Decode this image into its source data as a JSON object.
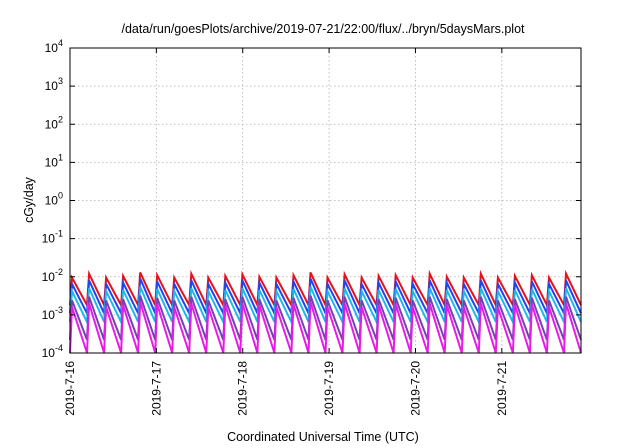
{
  "chart_data": {
    "type": "line",
    "title": "/data/run/goesPlots/archive/2019-07-21/22:00/flux/../bryn/5daysMars.plot",
    "xlabel": "Coordinated Universal Time (UTC)",
    "ylabel": "cGy/day",
    "yscale": "log",
    "ylim": [
      0.0001,
      10000
    ],
    "y_ticks": [
      {
        "base": "10",
        "exp": "-4",
        "value": 0.0001
      },
      {
        "base": "10",
        "exp": "-3",
        "value": 0.001
      },
      {
        "base": "10",
        "exp": "-2",
        "value": 0.01
      },
      {
        "base": "10",
        "exp": "-1",
        "value": 0.1
      },
      {
        "base": "10",
        "exp": "0",
        "value": 1
      },
      {
        "base": "10",
        "exp": "1",
        "value": 10
      },
      {
        "base": "10",
        "exp": "2",
        "value": 100
      },
      {
        "base": "10",
        "exp": "3",
        "value": 1000
      },
      {
        "base": "10",
        "exp": "4",
        "value": 10000
      }
    ],
    "xlim": [
      "2019-07-16 00:00",
      "2019-07-21 22:00"
    ],
    "x_ticks": [
      "2019-7-16",
      "2019-7-17",
      "2019-7-18",
      "2019-7-19",
      "2019-7-20",
      "2019-7-21"
    ],
    "grid": true,
    "legend": "none",
    "series": [
      {
        "color": "#e8101a",
        "sawtooth": {
          "peak": [
            0.0095,
            0.012,
            0.0095,
            0.0105,
            0.013,
            0.011,
            0.0095,
            0.012,
            0.0095,
            0.0105,
            0.0115,
            0.01,
            0.0095,
            0.011,
            0.013,
            0.0095,
            0.0115,
            0.0095,
            0.0105,
            0.011,
            0.0095,
            0.012,
            0.01,
            0.0095,
            0.012,
            0.0095,
            0.0105,
            0.011,
            0.0095,
            0.012
          ],
          "trough": 0.0018
        }
      },
      {
        "color": "#2244ee",
        "sawtooth": {
          "peak": [
            0.0065,
            0.008,
            0.0065,
            0.007,
            0.009,
            0.0075,
            0.0065,
            0.008,
            0.0065,
            0.007,
            0.008,
            0.007,
            0.0065,
            0.0075,
            0.009,
            0.0065,
            0.008,
            0.0065,
            0.007,
            0.0075,
            0.0065,
            0.008,
            0.007,
            0.0065,
            0.008,
            0.0065,
            0.007,
            0.0075,
            0.0065,
            0.008
          ],
          "trough": 0.0011
        }
      },
      {
        "color": "#1fb7ea",
        "sawtooth": {
          "peak": [
            0.0042,
            0.005,
            0.0042,
            0.0045,
            0.0055,
            0.0048,
            0.0042,
            0.005,
            0.0042,
            0.0045,
            0.005,
            0.0045,
            0.0042,
            0.0048,
            0.0055,
            0.0042,
            0.005,
            0.0042,
            0.0045,
            0.0048,
            0.0042,
            0.005,
            0.0045,
            0.0042,
            0.005,
            0.0042,
            0.0045,
            0.0048,
            0.0042,
            0.005
          ],
          "trough": 0.00065
        }
      },
      {
        "color": "#7a3fb5",
        "sawtooth": {
          "peak": [
            0.0024,
            0.003,
            0.0024,
            0.0026,
            0.0032,
            0.0028,
            0.0024,
            0.003,
            0.0024,
            0.0026,
            0.003,
            0.0026,
            0.0024,
            0.0028,
            0.0032,
            0.0024,
            0.003,
            0.0024,
            0.0026,
            0.0028,
            0.0024,
            0.003,
            0.0026,
            0.0024,
            0.003,
            0.0024,
            0.0026,
            0.0028,
            0.0024,
            0.003
          ],
          "trough": 0.00022
        }
      },
      {
        "color": "#e61ce6",
        "sawtooth": {
          "peak": [
            0.0016,
            0.002,
            0.0016,
            0.0018,
            0.0022,
            0.0019,
            0.0016,
            0.002,
            0.0016,
            0.0018,
            0.002,
            0.0018,
            0.0016,
            0.0019,
            0.0022,
            0.0016,
            0.002,
            0.0016,
            0.0018,
            0.0019,
            0.0016,
            0.002,
            0.0018,
            0.0016,
            0.002,
            0.0016,
            0.0018,
            0.0019,
            0.0016,
            0.002
          ],
          "trough": 8e-05
        }
      }
    ]
  }
}
